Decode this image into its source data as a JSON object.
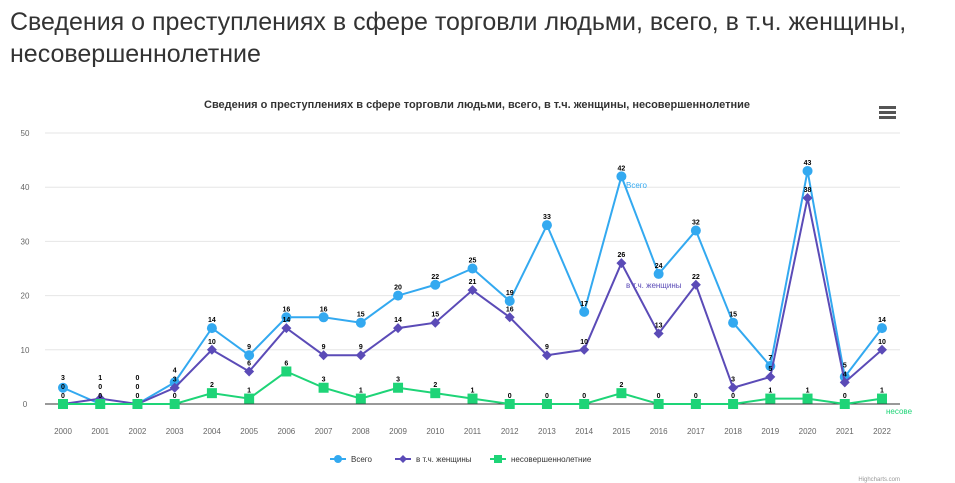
{
  "page_title": "Сведения о преступлениях в сфере торговли людьми, всего, в т.ч. женщины, несовершеннолетние",
  "credits": "Highcharts.com",
  "chart_data": {
    "type": "line",
    "title": "Сведения о преступлениях в сфере торговли людьми, всего, в т.ч. женщины, несовершеннолетние",
    "x": [
      "2000",
      "2001",
      "2002",
      "2003",
      "2004",
      "2005",
      "2006",
      "2007",
      "2008",
      "2009",
      "2010",
      "2011",
      "2012",
      "2013",
      "2014",
      "2015",
      "2016",
      "2017",
      "2018",
      "2019",
      "2020",
      "2021",
      "2022"
    ],
    "ylim": [
      0,
      50
    ],
    "yticks": [
      0,
      10,
      20,
      30,
      40,
      50
    ],
    "grid": true,
    "legend": "bottom",
    "series": [
      {
        "name": "Всего",
        "color": "#33a9f0",
        "marker": "circle",
        "end_label": "Всего",
        "values": [
          3,
          0,
          0,
          4,
          14,
          9,
          16,
          16,
          15,
          20,
          22,
          25,
          19,
          33,
          17,
          42,
          24,
          32,
          15,
          7,
          43,
          5,
          14
        ]
      },
      {
        "name": "в т.ч. женщины",
        "color": "#5b4bb7",
        "marker": "diamond",
        "end_label": "в т.ч. женщины",
        "values": [
          0,
          1,
          0,
          3,
          10,
          6,
          14,
          9,
          9,
          14,
          15,
          21,
          16,
          9,
          10,
          26,
          13,
          22,
          3,
          5,
          38,
          4,
          10
        ]
      },
      {
        "name": "несовершеннолетние",
        "color": "#1ed477",
        "marker": "square",
        "end_label": "несове",
        "values": [
          0,
          0,
          0,
          0,
          2,
          1,
          6,
          3,
          1,
          3,
          2,
          1,
          0,
          0,
          0,
          2,
          0,
          0,
          0,
          1,
          1,
          0,
          1
        ]
      }
    ]
  }
}
